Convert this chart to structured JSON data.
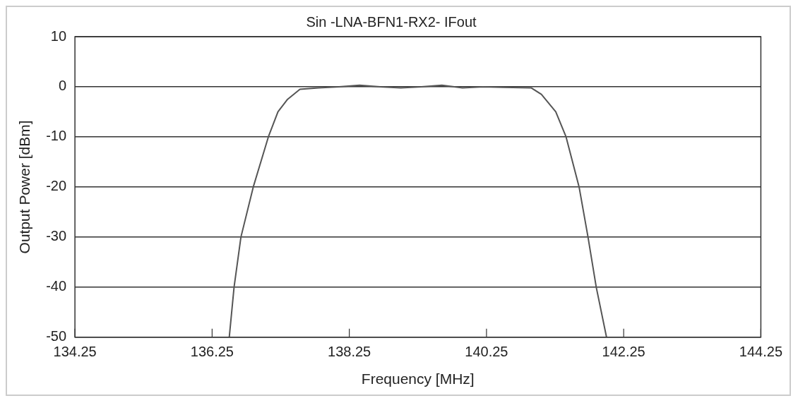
{
  "chart_data": {
    "type": "line",
    "title": "Sin -LNA-BFN1-RX2- IFout",
    "xlabel": "Frequency [MHz]",
    "ylabel": "Output Power [dBm]",
    "series": [
      {
        "color": "#555555",
        "x": [
          136.5,
          136.57,
          136.67,
          136.85,
          137.07,
          137.21,
          137.35,
          137.53,
          137.8,
          138.1,
          138.4,
          138.7,
          139.0,
          139.3,
          139.6,
          139.9,
          140.2,
          140.5,
          140.9,
          141.05,
          141.26,
          141.41,
          141.6,
          141.73,
          141.85,
          142.0
        ],
        "values": [
          -50,
          -40,
          -30,
          -20,
          -10,
          -5,
          -2.5,
          -0.5,
          -0.2,
          0,
          0.3,
          0,
          -0.2,
          0,
          0.3,
          -0.2,
          0,
          -0.1,
          -0.2,
          -1.5,
          -5,
          -10,
          -20,
          -30,
          -40,
          -50
        ]
      }
    ],
    "xlim": [
      134.25,
      144.25
    ],
    "xticks": [
      134.25,
      136.25,
      138.25,
      140.25,
      142.25,
      144.25
    ],
    "ylim": [
      -50,
      10
    ],
    "yticks": [
      -50,
      -40,
      -30,
      -20,
      -10,
      0,
      10
    ],
    "grid": "y",
    "legend": false,
    "marker": "none",
    "line_style": "solid"
  }
}
